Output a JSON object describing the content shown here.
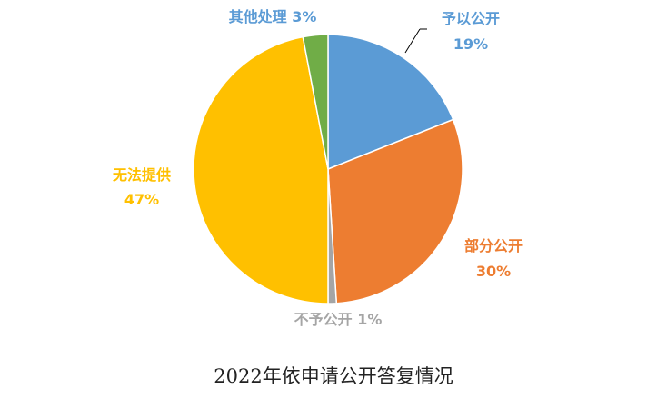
{
  "chart_data": {
    "type": "pie",
    "title": "2022年依申请公开答复情况",
    "start_angle_deg": 0,
    "direction": "clockwise",
    "slices": [
      {
        "name": "予以公开",
        "value": 19,
        "color": "#5B9BD5",
        "label_line1": "予以公开",
        "label_line2": "19%"
      },
      {
        "name": "部分公开",
        "value": 30,
        "color": "#ED7D31",
        "label_line1": "部分公开",
        "label_line2": "30%"
      },
      {
        "name": "不予公开",
        "value": 1,
        "color": "#A5A5A5",
        "label_line1": "不予公开 1%",
        "label_line2": ""
      },
      {
        "name": "无法提供",
        "value": 47,
        "color": "#FFC000",
        "label_line1": "无法提供",
        "label_line2": "47%"
      },
      {
        "name": "其他处理",
        "value": 3,
        "color": "#70AD47",
        "label_line1": "其他处理 3%",
        "label_line2": ""
      }
    ]
  }
}
